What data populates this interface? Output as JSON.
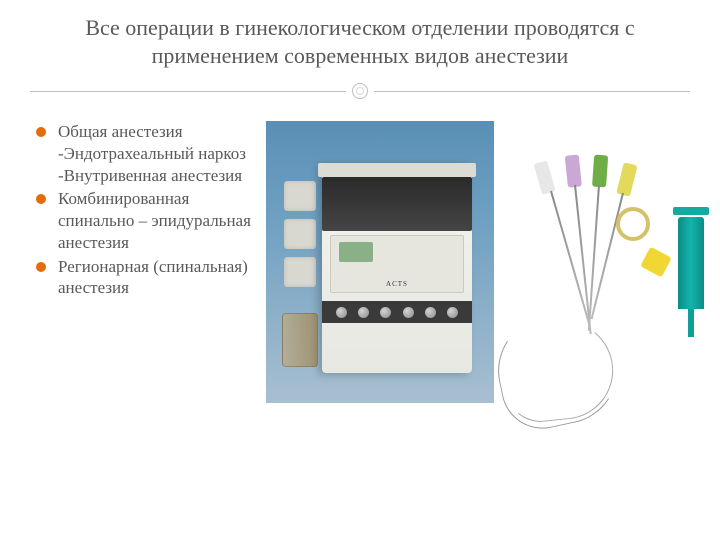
{
  "title": "Все операции в гинекологическом отделении проводятся с применением современных видов анестезии",
  "bullets": [
    "Общая анестезия\n-Эндотрахеальный наркоз\n-Внутривенная анестезия",
    "Комбинированная спинально – эпидуральная анестезия",
    "Регионарная (спинальная) анестезия"
  ],
  "styling": {
    "title_color": "#595959",
    "title_fontsize": 22,
    "bullet_color": "#595959",
    "bullet_fontsize": 17,
    "bullet_marker_color": "#e46c0a",
    "divider_color": "#bfbfbf",
    "background": "#ffffff"
  },
  "images": {
    "left": {
      "description": "anesthesia-machine",
      "bg_gradient": [
        "#5a8fb5",
        "#a8bfd0"
      ],
      "machine_body": "#efefe8",
      "label": "ACTS"
    },
    "right": {
      "description": "spinal-needles-and-syringe",
      "syringe_color": "#14b3ab",
      "hub_colors": [
        "#e2d95d",
        "#c9a8d6",
        "#6fae46",
        "#e7e7e7"
      ],
      "ring_color": "#d4c268",
      "cap_color": "#f0d733"
    }
  }
}
